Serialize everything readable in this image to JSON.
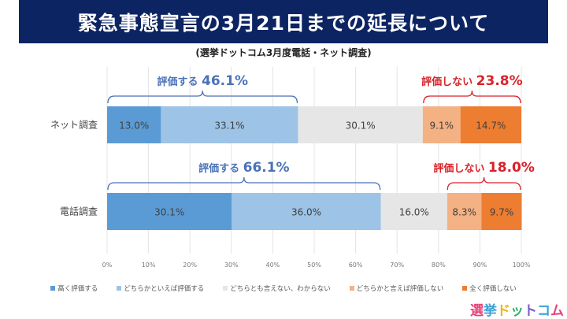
{
  "title": "緊急事態宣言の3月21日までの延長について",
  "subtitle": "(選挙ドットコム3月度電話・ネット調査)",
  "logo": {
    "text": "選挙ドットコム",
    "chars": [
      "選",
      "挙",
      "ド",
      "ッ",
      "ト",
      "コ",
      "ム"
    ],
    "colors": [
      "#e8437a",
      "#3aa0d8",
      "#f2b400",
      "#33b06a",
      "#7b5ec4",
      "#3aa0d8",
      "#e8437a"
    ]
  },
  "colors": {
    "title_bg": "#0d2463",
    "positive_annotation": "#4a72b8",
    "negative_annotation": "#d9222a",
    "series": [
      "#5b9bd5",
      "#9dc3e6",
      "#e7e6e6",
      "#f4b183",
      "#ed7d31"
    ]
  },
  "chart_data": {
    "type": "bar",
    "orientation": "horizontal-stacked-100",
    "categories": [
      "ネット調査",
      "電話調査"
    ],
    "series": [
      {
        "name": "高く評価する",
        "values": [
          13.0,
          30.1
        ]
      },
      {
        "name": "どちらかといえば評価する",
        "values": [
          33.1,
          36.0
        ]
      },
      {
        "name": "どちらとも言えない、わからない",
        "values": [
          30.1,
          16.0
        ]
      },
      {
        "name": "どちらかと言えば評価しない",
        "values": [
          9.1,
          8.3
        ]
      },
      {
        "name": "全く評価しない",
        "values": [
          14.7,
          9.7
        ]
      }
    ],
    "data_labels": [
      [
        "13.0%",
        "33.1%",
        "30.1%",
        "9.1%",
        "14.7%"
      ],
      [
        "30.1%",
        "36.0%",
        "16.0%",
        "8.3%",
        "9.7%"
      ]
    ],
    "annotations": [
      {
        "category": "ネット調査",
        "group": "positive",
        "label": "評価する",
        "value": "46.1%",
        "range": [
          0,
          46.1
        ]
      },
      {
        "category": "ネット調査",
        "group": "negative",
        "label": "評価しない",
        "value": "23.8%",
        "range": [
          76.2,
          100
        ]
      },
      {
        "category": "電話調査",
        "group": "positive",
        "label": "評価する",
        "value": "66.1%",
        "range": [
          0,
          66.1
        ]
      },
      {
        "category": "電話調査",
        "group": "negative",
        "label": "評価しない",
        "value": "18.0%",
        "range": [
          82.0,
          100
        ]
      }
    ],
    "xlim": [
      0,
      100
    ],
    "xticks": [
      "0%",
      "10%",
      "20%",
      "30%",
      "40%",
      "50%",
      "60%",
      "70%",
      "80%",
      "90%",
      "100%"
    ],
    "grid": true,
    "legend_position": "bottom"
  }
}
